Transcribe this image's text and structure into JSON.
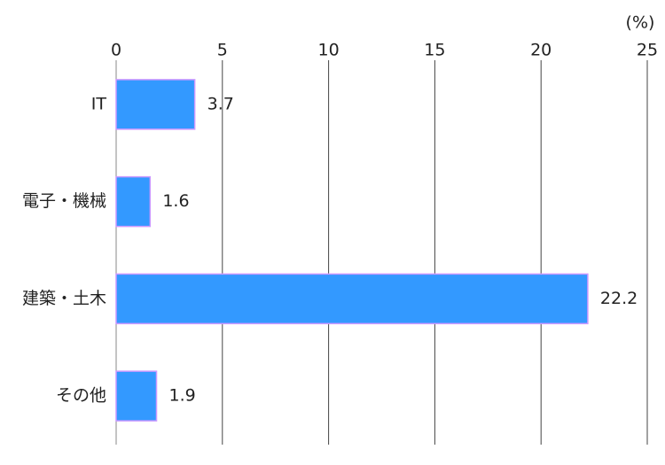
{
  "chart_data": {
    "type": "bar",
    "orientation": "horizontal",
    "unit_label": "(%)",
    "categories": [
      "IT",
      "電子・機械",
      "建築・土木",
      "その他"
    ],
    "values": [
      3.7,
      1.6,
      22.2,
      1.9
    ],
    "color": "#3399ff",
    "edge_color": "#cc99ff",
    "xlim": [
      0,
      25
    ],
    "xticks": [
      0,
      5,
      10,
      15,
      20,
      25
    ],
    "grid": true
  }
}
